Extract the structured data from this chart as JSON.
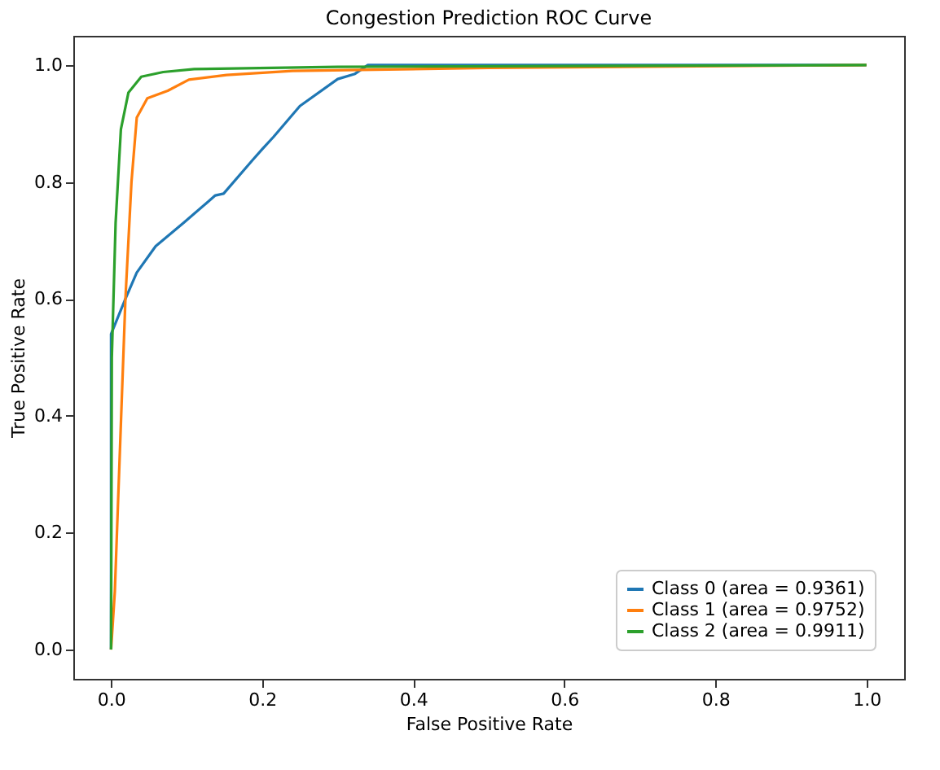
{
  "chart_data": {
    "type": "line",
    "title": "Congestion Prediction ROC Curve",
    "xlabel": "False Positive Rate",
    "ylabel": "True Positive Rate",
    "xlim": [
      -0.05,
      1.05
    ],
    "ylim": [
      -0.05,
      1.05
    ],
    "xticks": [
      {
        "value": 0,
        "label": "0.0"
      },
      0.2,
      0.4,
      0.6,
      0.8,
      {
        "value": 1,
        "label": "1.0"
      }
    ],
    "yticks": [
      {
        "value": 0,
        "label": "0.0"
      },
      0.2,
      0.4,
      0.6,
      0.8,
      {
        "value": 1,
        "label": "1.0"
      }
    ],
    "grid": false,
    "legend": "bottom right",
    "marker": "none",
    "line_style": "solid",
    "series": [
      {
        "name": "Class 0 (area = 0.9361)",
        "color": "#1f77b4",
        "x": [
          0,
          0,
          0.019,
          0.034,
          0.059,
          0.096,
          0.138,
          0.149,
          0.187,
          0.2,
          0.215,
          0.25,
          0.3,
          0.323,
          0.34,
          1
        ],
        "values": [
          0,
          0.54,
          0.6,
          0.645,
          0.69,
          0.73,
          0.777,
          0.78,
          0.837,
          0.856,
          0.877,
          0.93,
          0.976,
          0.985,
          1.0,
          1.0
        ]
      },
      {
        "name": "Class 1 (area = 0.9752)",
        "color": "#ff7f0e",
        "x": [
          0,
          0.005,
          0.01,
          0.019,
          0.027,
          0.034,
          0.048,
          0.075,
          0.103,
          0.153,
          0.24,
          0.5,
          1
        ],
        "values": [
          0,
          0.1,
          0.28,
          0.6,
          0.8,
          0.91,
          0.943,
          0.956,
          0.975,
          0.983,
          0.99,
          0.995,
          1.0
        ]
      },
      {
        "name": "Class 2 (area = 0.9911)",
        "color": "#2ca02c",
        "x": [
          0,
          0.001,
          0.006,
          0.013,
          0.023,
          0.04,
          0.069,
          0.11,
          0.3,
          1
        ],
        "values": [
          0,
          0.5,
          0.73,
          0.89,
          0.953,
          0.98,
          0.988,
          0.993,
          0.997,
          1.0
        ]
      }
    ]
  }
}
